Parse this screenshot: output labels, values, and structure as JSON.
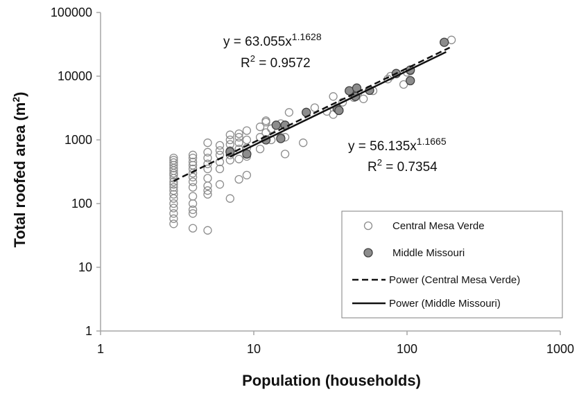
{
  "chart_data": {
    "type": "scatter",
    "xlabel": "Population (households)",
    "ylabel_main": "Total roofed area (m",
    "ylabel_sup": "2",
    "ylabel_close": ")",
    "x_scale": "log",
    "y_scale": "log",
    "xlim": [
      1,
      1000
    ],
    "ylim": [
      1,
      100000
    ],
    "x_ticks": [
      "1",
      "10",
      "100",
      "1000"
    ],
    "y_ticks": [
      "1",
      "10",
      "100",
      "1000",
      "10000",
      "100000"
    ],
    "grid": false,
    "legend_position": "bottom-right",
    "series": [
      {
        "name": "Central Mesa Verde",
        "marker": "open-circle",
        "color": "#8c8c8c",
        "points": [
          [
            3,
            48
          ],
          [
            3,
            58
          ],
          [
            3,
            70
          ],
          [
            3,
            85
          ],
          [
            3,
            100
          ],
          [
            3,
            120
          ],
          [
            3,
            140
          ],
          [
            3,
            160
          ],
          [
            3,
            180
          ],
          [
            3,
            200
          ],
          [
            3,
            220
          ],
          [
            3,
            250
          ],
          [
            3,
            280
          ],
          [
            3,
            300
          ],
          [
            3,
            330
          ],
          [
            3,
            360
          ],
          [
            3,
            400
          ],
          [
            3,
            440
          ],
          [
            3,
            480
          ],
          [
            3,
            520
          ],
          [
            4,
            41
          ],
          [
            4,
            70
          ],
          [
            4,
            80
          ],
          [
            4,
            100
          ],
          [
            4,
            130
          ],
          [
            4,
            180
          ],
          [
            4,
            220
          ],
          [
            4,
            260
          ],
          [
            4,
            300
          ],
          [
            4,
            350
          ],
          [
            4,
            400
          ],
          [
            4,
            450
          ],
          [
            4,
            520
          ],
          [
            4,
            580
          ],
          [
            5,
            38
          ],
          [
            5,
            140
          ],
          [
            5,
            160
          ],
          [
            5,
            190
          ],
          [
            5,
            250
          ],
          [
            5,
            350
          ],
          [
            5,
            420
          ],
          [
            5,
            520
          ],
          [
            5,
            640
          ],
          [
            5,
            900
          ],
          [
            6,
            200
          ],
          [
            6,
            350
          ],
          [
            6,
            450
          ],
          [
            6,
            580
          ],
          [
            6,
            680
          ],
          [
            6,
            820
          ],
          [
            7,
            120
          ],
          [
            7,
            480
          ],
          [
            7,
            580
          ],
          [
            7,
            680
          ],
          [
            7,
            850
          ],
          [
            7,
            1000
          ],
          [
            7,
            1200
          ],
          [
            8,
            240
          ],
          [
            8,
            500
          ],
          [
            8,
            720
          ],
          [
            8,
            900
          ],
          [
            8,
            1100
          ],
          [
            8,
            1250
          ],
          [
            9,
            280
          ],
          [
            9,
            550
          ],
          [
            9,
            750
          ],
          [
            9,
            1000
          ],
          [
            9,
            1400
          ],
          [
            11,
            720
          ],
          [
            11,
            1100
          ],
          [
            11,
            1600
          ],
          [
            12,
            1300
          ],
          [
            12,
            1900
          ],
          [
            12,
            2000
          ],
          [
            13,
            1000
          ],
          [
            13,
            1500
          ],
          [
            14,
            1700
          ],
          [
            15,
            1100
          ],
          [
            15,
            1800
          ],
          [
            16,
            600
          ],
          [
            16,
            1100
          ],
          [
            17,
            2700
          ],
          [
            21,
            900
          ],
          [
            25,
            3200
          ],
          [
            30,
            2800
          ],
          [
            33,
            2500
          ],
          [
            33,
            4800
          ],
          [
            38,
            3900
          ],
          [
            45,
            4600
          ],
          [
            48,
            5600
          ],
          [
            52,
            4400
          ],
          [
            60,
            5900
          ],
          [
            75,
            9000
          ],
          [
            78,
            10000
          ],
          [
            95,
            7400
          ],
          [
            100,
            11500
          ],
          [
            105,
            12000
          ],
          [
            195,
            37000
          ]
        ]
      },
      {
        "name": "Middle Missouri",
        "marker": "filled-circle",
        "color": "#8c8c8c",
        "points": [
          [
            7,
            650
          ],
          [
            9,
            600
          ],
          [
            12,
            1000
          ],
          [
            14,
            1700
          ],
          [
            15,
            1050
          ],
          [
            16,
            1700
          ],
          [
            22,
            2700
          ],
          [
            35,
            3100
          ],
          [
            36,
            2900
          ],
          [
            42,
            5900
          ],
          [
            46,
            4800
          ],
          [
            47,
            6500
          ],
          [
            57,
            6000
          ],
          [
            85,
            11000
          ],
          [
            105,
            8500
          ],
          [
            105,
            12500
          ],
          [
            175,
            34000
          ]
        ]
      }
    ],
    "trendlines": [
      {
        "name": "Power (Central Mesa Verde)",
        "style": "dashed",
        "coef": 63.055,
        "exponent": 1.1628,
        "x_range": [
          3,
          190
        ],
        "equation_text": "y = 63.055x",
        "equation_exp": "1.1628",
        "r2_prefix": "R",
        "r2_sup": "2",
        "r2_suffix": " = 0.9572"
      },
      {
        "name": "Power (Middle Missouri)",
        "style": "solid",
        "coef": 56.135,
        "exponent": 1.1665,
        "x_range": [
          7,
          180
        ],
        "equation_text": "y = 56.135x",
        "equation_exp": "1.1665",
        "r2_prefix": "R",
        "r2_sup": "2",
        "r2_suffix": " = 0.7354"
      }
    ]
  }
}
